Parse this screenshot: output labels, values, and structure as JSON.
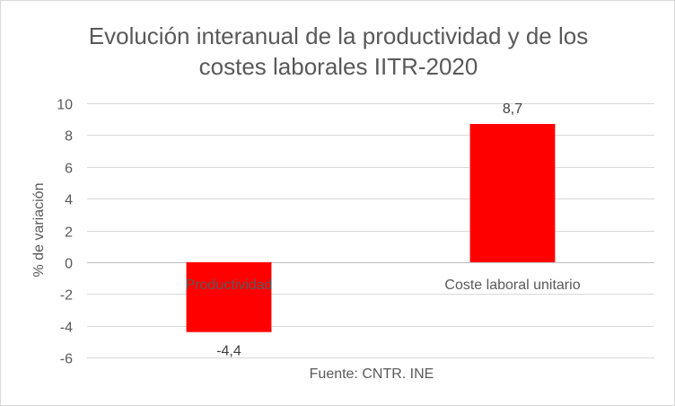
{
  "chart_data": {
    "type": "bar",
    "title": "Evolución interanual de la productividad y de los costes laborales IITR-2020",
    "title_lines": [
      "Evolución interanual de la productividad y de los",
      "costes laborales IITR-2020"
    ],
    "categories": [
      "Productividad",
      "Coste laboral unitario"
    ],
    "values": [
      -4.4,
      8.7
    ],
    "data_labels": [
      "-4,4",
      "8,7"
    ],
    "xlabel": "",
    "ylabel": "% de variación",
    "ylim": [
      -6,
      10
    ],
    "yticks": [
      10,
      8,
      6,
      4,
      2,
      0,
      -2,
      -4,
      -6
    ],
    "grid": true,
    "legend": "none",
    "bar_color": "#ff0000",
    "annotation": "Fuente: CNTR. INE"
  }
}
